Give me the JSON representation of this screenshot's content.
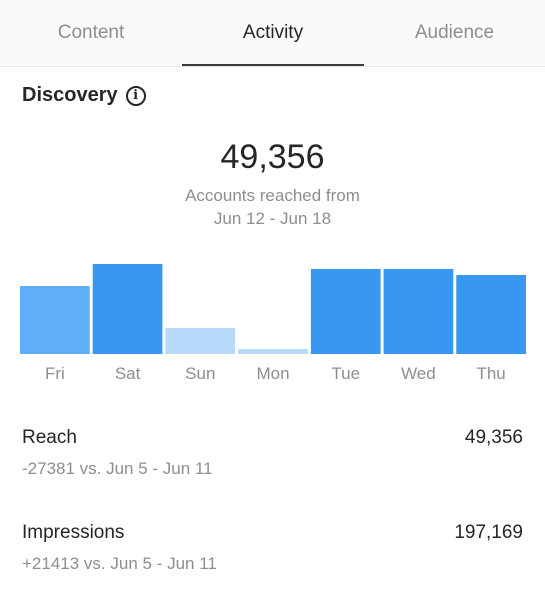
{
  "tabs": [
    {
      "label": "Content"
    },
    {
      "label": "Activity"
    },
    {
      "label": "Audience"
    }
  ],
  "discovery": {
    "title": "Discovery",
    "info_icon": "info-icon",
    "accounts_reached": "49,356",
    "accounts_reached_label": "Accounts reached from",
    "date_range": "Jun 12 - Jun 18"
  },
  "chart_data": {
    "type": "bar",
    "categories": [
      "Fri",
      "Sat",
      "Sun",
      "Mon",
      "Tue",
      "Wed",
      "Thu"
    ],
    "values": [
      68,
      90,
      26,
      5,
      85,
      85,
      79
    ],
    "colors": [
      "#5fb0f8",
      "#3897f0",
      "#b7dafb",
      "#b7dafb",
      "#3897f0",
      "#3897f0",
      "#3897f0"
    ],
    "ylim": [
      0,
      100
    ],
    "grid": false
  },
  "stats": [
    {
      "label": "Reach",
      "value": "49,356",
      "comparison": "-27381 vs. Jun 5 - Jun 11"
    },
    {
      "label": "Impressions",
      "value": "197,169",
      "comparison": "+21413 vs. Jun 5 - Jun 11"
    }
  ],
  "colors": {
    "primary_bar": "#3897f0",
    "light_bar": "#5fb0f8",
    "lighter_bar": "#b7dafb",
    "text_primary": "#262626",
    "text_secondary": "#8e8e8e"
  }
}
